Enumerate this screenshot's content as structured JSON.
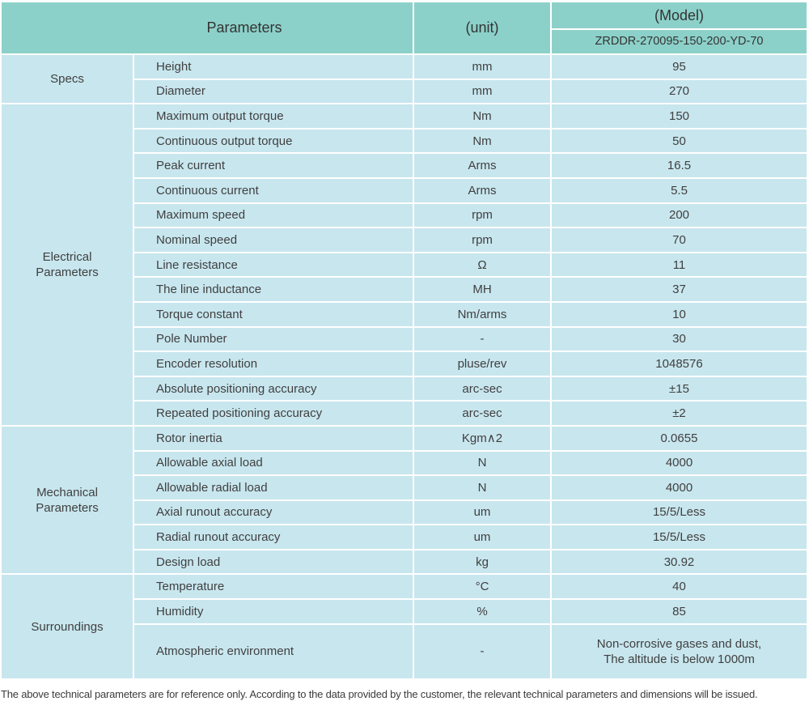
{
  "colors": {
    "header_bg": "#8cd1c9",
    "cell_bg": "#c8e6ee",
    "gap": "#ffffff",
    "text": "#404040",
    "header_text": "#333333"
  },
  "header": {
    "parameters": "Parameters",
    "unit": "(unit)",
    "model": "(Model)",
    "model_number": "ZRDDR-270095-150-200-YD-70"
  },
  "sections": [
    {
      "group": "Specs",
      "rows": [
        {
          "param": "Height",
          "unit": "mm",
          "value": "95"
        },
        {
          "param": "Diameter",
          "unit": "mm",
          "value": "270"
        }
      ]
    },
    {
      "group": "Electrical\nParameters",
      "rows": [
        {
          "param": "Maximum output torque",
          "unit": "Nm",
          "value": "150"
        },
        {
          "param": "Continuous output torque",
          "unit": "Nm",
          "value": "50"
        },
        {
          "param": "Peak current",
          "unit": "Arms",
          "value": "16.5"
        },
        {
          "param": "Continuous current",
          "unit": "Arms",
          "value": "5.5"
        },
        {
          "param": "Maximum speed",
          "unit": "rpm",
          "value": "200"
        },
        {
          "param": "Nominal speed",
          "unit": "rpm",
          "value": "70"
        },
        {
          "param": "Line resistance",
          "unit": "Ω",
          "value": "11"
        },
        {
          "param": "The line inductance",
          "unit": "MH",
          "value": "37"
        },
        {
          "param": "Torque constant",
          "unit": "Nm/arms",
          "value": "10"
        },
        {
          "param": "Pole Number",
          "unit": "-",
          "value": "30"
        },
        {
          "param": "Encoder resolution",
          "unit": "pluse/rev",
          "value": "1048576"
        },
        {
          "param": "Absolute positioning accuracy",
          "unit": "arc-sec",
          "value": "±15"
        },
        {
          "param": "Repeated positioning accuracy",
          "unit": "arc-sec",
          "value": "±2"
        }
      ]
    },
    {
      "group": "Mechanical\nParameters",
      "rows": [
        {
          "param": "Rotor inertia",
          "unit": "Kgm∧2",
          "value": "0.0655"
        },
        {
          "param": "Allowable axial load",
          "unit": "N",
          "value": "4000"
        },
        {
          "param": "Allowable radial load",
          "unit": "N",
          "value": "4000"
        },
        {
          "param": "Axial runout accuracy",
          "unit": "um",
          "value": "15/5/Less"
        },
        {
          "param": "Radial runout accuracy",
          "unit": "um",
          "value": "15/5/Less"
        },
        {
          "param": "Design load",
          "unit": "kg",
          "value": "30.92"
        }
      ]
    },
    {
      "group": "Surroundings",
      "rows": [
        {
          "param": "Temperature",
          "unit": "°C",
          "value": "40"
        },
        {
          "param": "Humidity",
          "unit": "%",
          "value": "85"
        },
        {
          "param": "Atmospheric environment",
          "unit": "-",
          "value": "Non-corrosive gases and dust,\nThe altitude is below 1000m"
        }
      ]
    }
  ],
  "footer": {
    "note": "The above technical parameters are for reference only. According to the data provided by the customer, the relevant technical parameters and dimensions will be issued."
  }
}
